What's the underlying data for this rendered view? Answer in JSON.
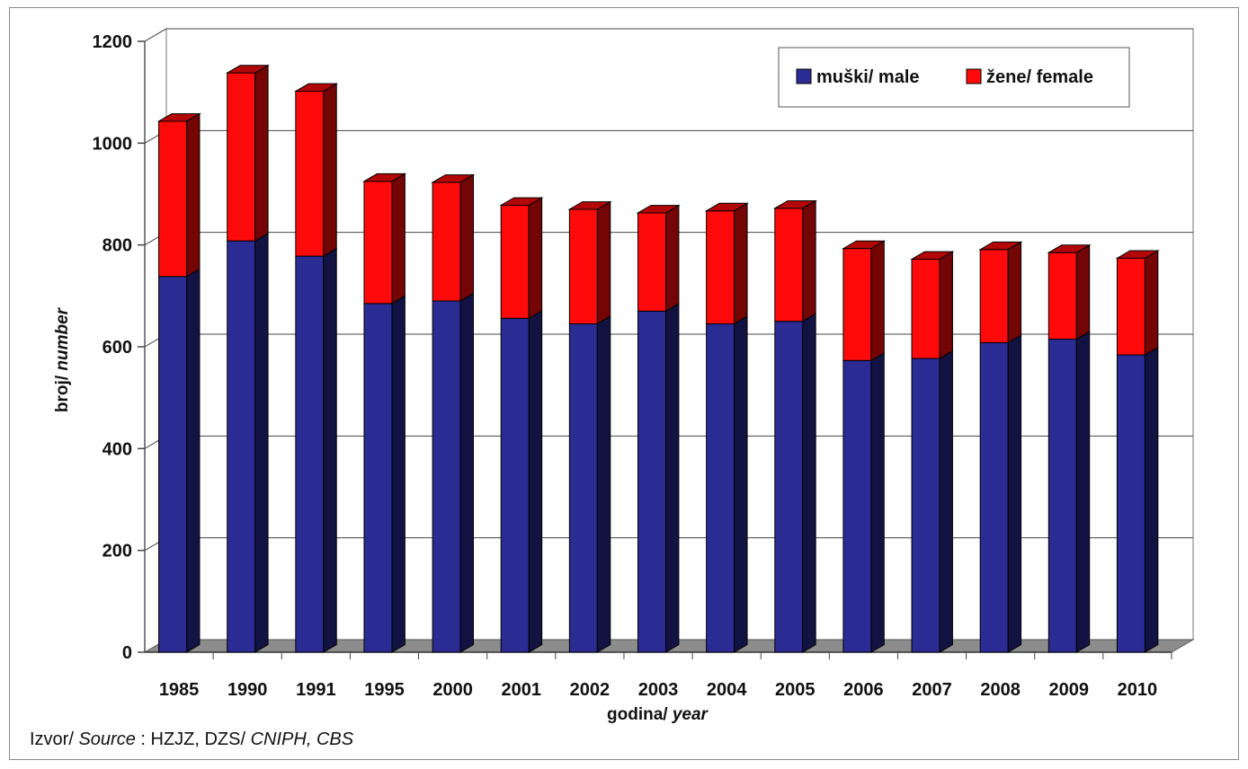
{
  "chart_data": {
    "type": "bar",
    "stacked": true,
    "three_d": true,
    "categories": [
      "1985",
      "1990",
      "1991",
      "1995",
      "2000",
      "2001",
      "2002",
      "2003",
      "2004",
      "2005",
      "2006",
      "2007",
      "2008",
      "2009",
      "2010"
    ],
    "series": [
      {
        "name": "muški/ male",
        "color": "#2b2b94",
        "values": [
          738,
          808,
          778,
          685,
          690,
          656,
          645,
          670,
          645,
          650,
          573,
          577,
          608,
          615,
          584
        ]
      },
      {
        "name": "žene/ female",
        "color": "#ff0a0a",
        "values": [
          305,
          330,
          324,
          240,
          233,
          222,
          225,
          193,
          222,
          222,
          220,
          195,
          183,
          170,
          190
        ]
      }
    ],
    "ylim": [
      0,
      1200
    ],
    "yticks": [
      0,
      200,
      400,
      600,
      800,
      1000,
      1200
    ],
    "ylabel_prefix": "broj/ ",
    "ylabel_suffix": "number",
    "xlabel_prefix": "godina/ ",
    "xlabel_suffix": "year",
    "grid": true,
    "legend_position": "top-right"
  },
  "source": {
    "prefix": "Izvor/ ",
    "label": "Source",
    "text": " : HZJZ, DZS/ ",
    "italic_text": "CNIPH, CBS"
  }
}
